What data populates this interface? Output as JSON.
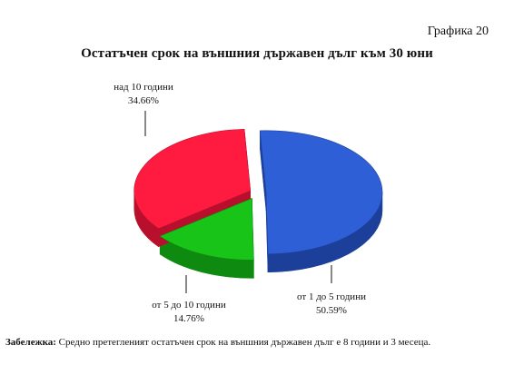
{
  "page": {
    "graph_number": "Графика 20",
    "footnote_label": "Забележка:",
    "footnote_text": " Средно претегленият остатъчен срок на външния държавен дълг е 8 години и 3 месеца."
  },
  "chart_data": {
    "type": "pie",
    "title": "Остатъчен срок на външния държавен дълг към 30 юни",
    "slices": [
      {
        "name": "от 1 до 5 години",
        "value": 50.59,
        "value_label": "50.59%",
        "color": "#2e5fd6",
        "side_color": "#1c3f9a"
      },
      {
        "name": "от 5 до 10 години",
        "value": 14.76,
        "value_label": "14.76%",
        "color": "#19c419",
        "side_color": "#0f8a10"
      },
      {
        "name": "над 10 години",
        "value": 34.66,
        "value_label": "34.66%",
        "color": "#ff1a40",
        "side_color": "#b8102c"
      }
    ],
    "exploded": true,
    "three_d": true,
    "legend": "none"
  }
}
